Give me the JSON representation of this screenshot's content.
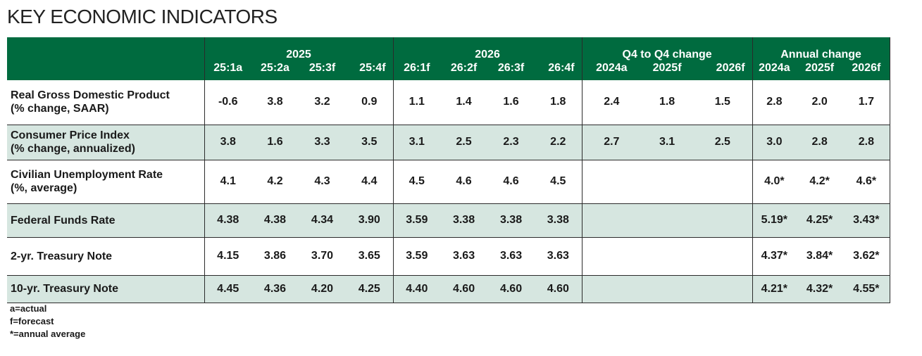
{
  "title": "KEY ECONOMIC INDICATORS",
  "groups": [
    "2025",
    "2026",
    "Q4 to Q4 change",
    "Annual change"
  ],
  "columns": [
    "25:1a",
    "25:2a",
    "25:3f",
    "25:4f",
    "26:1f",
    "26:2f",
    "26:3f",
    "26:4f",
    "2024a",
    "2025f",
    "2026f",
    "2024a",
    "2025f",
    "2026f"
  ],
  "rows": [
    {
      "label_1": "Real Gross Domestic Product",
      "label_2": "(% change, SAAR)",
      "values": [
        "-0.6",
        "3.8",
        "3.2",
        "0.9",
        "1.1",
        "1.4",
        "1.6",
        "1.8",
        "2.4",
        "1.8",
        "1.5",
        "2.8",
        "2.0",
        "1.7"
      ]
    },
    {
      "label_1": "Consumer Price Index",
      "label_2": "(% change, annualized)",
      "values": [
        "3.8",
        "1.6",
        "3.3",
        "3.5",
        "3.1",
        "2.5",
        "2.3",
        "2.2",
        "2.7",
        "3.1",
        "2.5",
        "3.0",
        "2.8",
        "2.8"
      ]
    },
    {
      "label_1": "Civilian Unemployment Rate",
      "label_2": "(%, average)",
      "values": [
        "4.1",
        "4.2",
        "4.3",
        "4.4",
        "4.5",
        "4.6",
        "4.6",
        "4.5",
        "",
        "",
        "",
        "4.0*",
        "4.2*",
        "4.6*"
      ]
    },
    {
      "label_1": "Federal Funds Rate",
      "label_2": "",
      "values": [
        "4.38",
        "4.38",
        "4.34",
        "3.90",
        "3.59",
        "3.38",
        "3.38",
        "3.38",
        "",
        "",
        "",
        "5.19*",
        "4.25*",
        "3.43*"
      ]
    },
    {
      "label_1": "2-yr. Treasury Note",
      "label_2": "",
      "values": [
        "4.15",
        "3.86",
        "3.70",
        "3.65",
        "3.59",
        "3.63",
        "3.63",
        "3.63",
        "",
        "",
        "",
        "4.37*",
        "3.84*",
        "3.62*"
      ]
    },
    {
      "label_1": "10-yr. Treasury Note",
      "label_2": "",
      "values": [
        "4.45",
        "4.36",
        "4.20",
        "4.25",
        "4.40",
        "4.60",
        "4.60",
        "4.60",
        "",
        "",
        "",
        "4.21*",
        "4.32*",
        "4.55*"
      ]
    }
  ],
  "notes": [
    "a=actual",
    "f=forecast",
    "*=annual average"
  ]
}
